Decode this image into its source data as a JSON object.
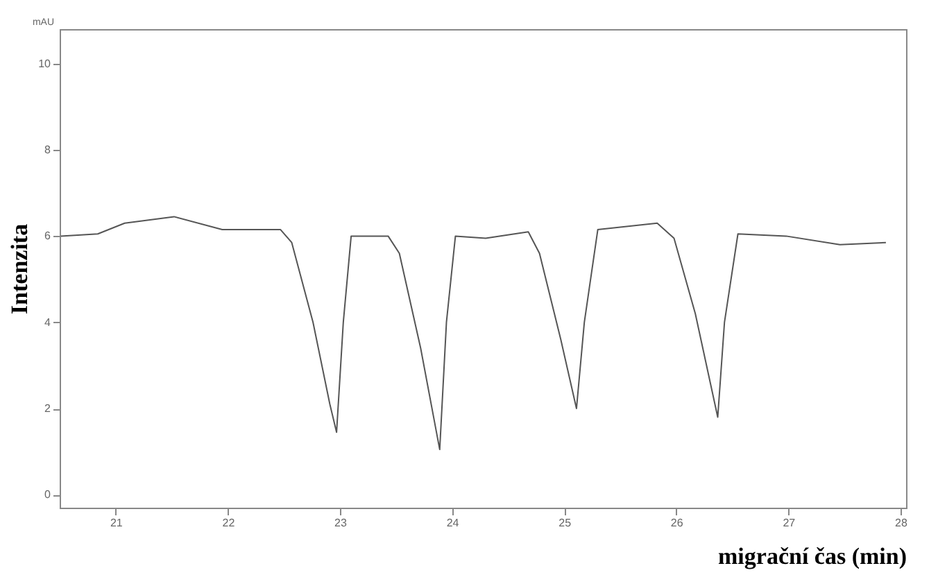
{
  "chart_data": {
    "type": "line",
    "xlabel": "migrační čas (min)",
    "ylabel": "Intenzita",
    "annotations": [
      "mAU"
    ],
    "x": [
      20.51,
      20.84,
      21.08,
      21.52,
      21.95,
      22.47,
      22.57,
      22.76,
      22.91,
      22.97,
      23.03,
      23.1,
      23.43,
      23.53,
      23.72,
      23.89,
      23.95,
      24.03,
      24.3,
      24.68,
      24.78,
      24.97,
      25.11,
      25.18,
      25.3,
      25.83,
      25.98,
      26.17,
      26.37,
      26.43,
      26.55,
      26.98,
      27.46,
      27.87
    ],
    "series": [
      {
        "color": "#555555",
        "values": [
          6.0,
          6.05,
          6.3,
          6.45,
          6.15,
          6.15,
          5.85,
          4.0,
          2.1,
          1.45,
          4.0,
          6.0,
          6.0,
          5.6,
          3.4,
          1.05,
          4.0,
          6.0,
          5.95,
          6.1,
          5.6,
          3.6,
          2.0,
          4.0,
          6.15,
          6.3,
          5.95,
          4.2,
          1.8,
          4.0,
          6.05,
          6.0,
          5.8,
          5.85
        ]
      }
    ],
    "xlim": [
      20.5,
      28.05
    ],
    "xticks": [
      21,
      22,
      23,
      24,
      25,
      26,
      27,
      28
    ],
    "ylim": [
      -0.3,
      10.8
    ],
    "yticks": [
      0,
      2,
      4,
      6,
      8,
      10
    ],
    "grid": false,
    "marker": "none",
    "line_style": "solid"
  }
}
